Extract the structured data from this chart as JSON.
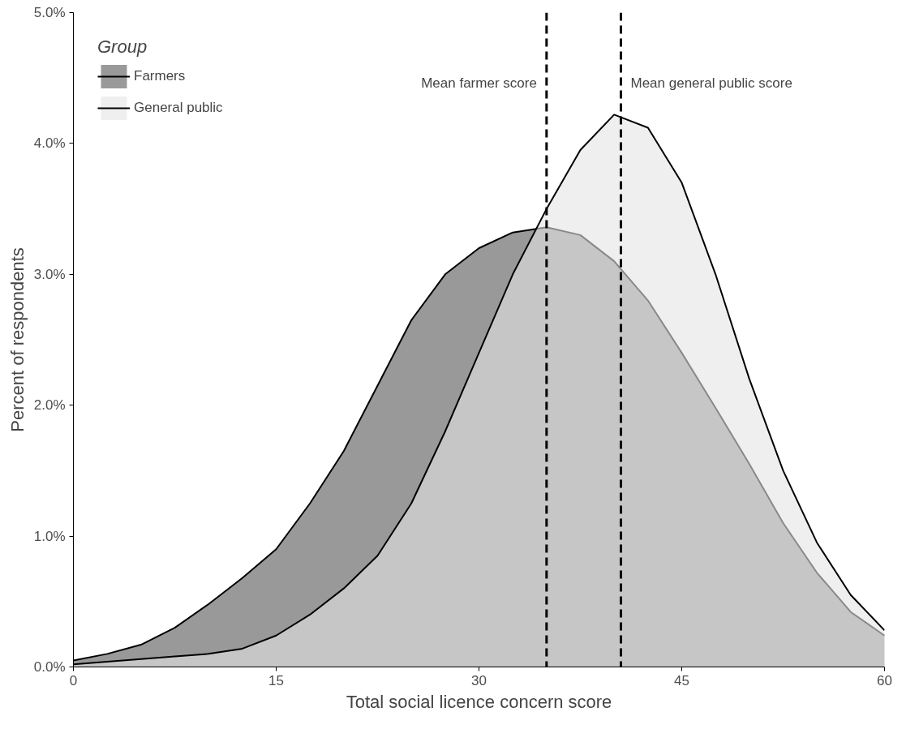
{
  "chart_data": {
    "type": "area",
    "xlabel": "Total social licence concern score",
    "ylabel": "Percent of respondents",
    "legend_title": "Group",
    "x": [
      0,
      2.5,
      5,
      7.5,
      10,
      12.5,
      15,
      17.5,
      20,
      22.5,
      25,
      27.5,
      30,
      32.5,
      35,
      37.5,
      40,
      42.5,
      45,
      47.5,
      50,
      52.5,
      55,
      57.5,
      60
    ],
    "series": [
      {
        "name": "Farmers",
        "color": "#999999",
        "values": [
          0.05,
          0.1,
          0.17,
          0.3,
          0.48,
          0.68,
          0.9,
          1.25,
          1.65,
          2.15,
          2.65,
          3.0,
          3.2,
          3.32,
          3.36,
          3.3,
          3.1,
          2.8,
          2.4,
          1.98,
          1.55,
          1.1,
          0.72,
          0.42,
          0.24
        ]
      },
      {
        "name": "General public",
        "color": "#e5e5e5",
        "values": [
          0.02,
          0.04,
          0.06,
          0.08,
          0.1,
          0.14,
          0.24,
          0.4,
          0.6,
          0.85,
          1.25,
          1.8,
          2.4,
          3.0,
          3.5,
          3.95,
          4.22,
          4.12,
          3.7,
          3.0,
          2.2,
          1.5,
          0.95,
          0.55,
          0.28
        ]
      }
    ],
    "xlim": [
      0,
      60
    ],
    "xticks": [
      0,
      15,
      30,
      45,
      60
    ],
    "ylim": [
      0,
      5
    ],
    "yticks": [
      {
        "value": 0,
        "label": "0.0%"
      },
      {
        "value": 1,
        "label": "1.0%"
      },
      {
        "value": 2,
        "label": "2.0%"
      },
      {
        "value": 3,
        "label": "3.0%"
      },
      {
        "value": 4,
        "label": "4.0%"
      },
      {
        "value": 5,
        "label": "5.0%"
      }
    ],
    "ref_lines": [
      {
        "axis": "x",
        "value": 35,
        "label": "Mean farmer score",
        "color": "#000000",
        "line_style": "dashed"
      },
      {
        "axis": "x",
        "value": 40.5,
        "label": "Mean general public score",
        "color": "#000000",
        "line_style": "dashed"
      }
    ],
    "legend": "top left",
    "grid": false
  }
}
